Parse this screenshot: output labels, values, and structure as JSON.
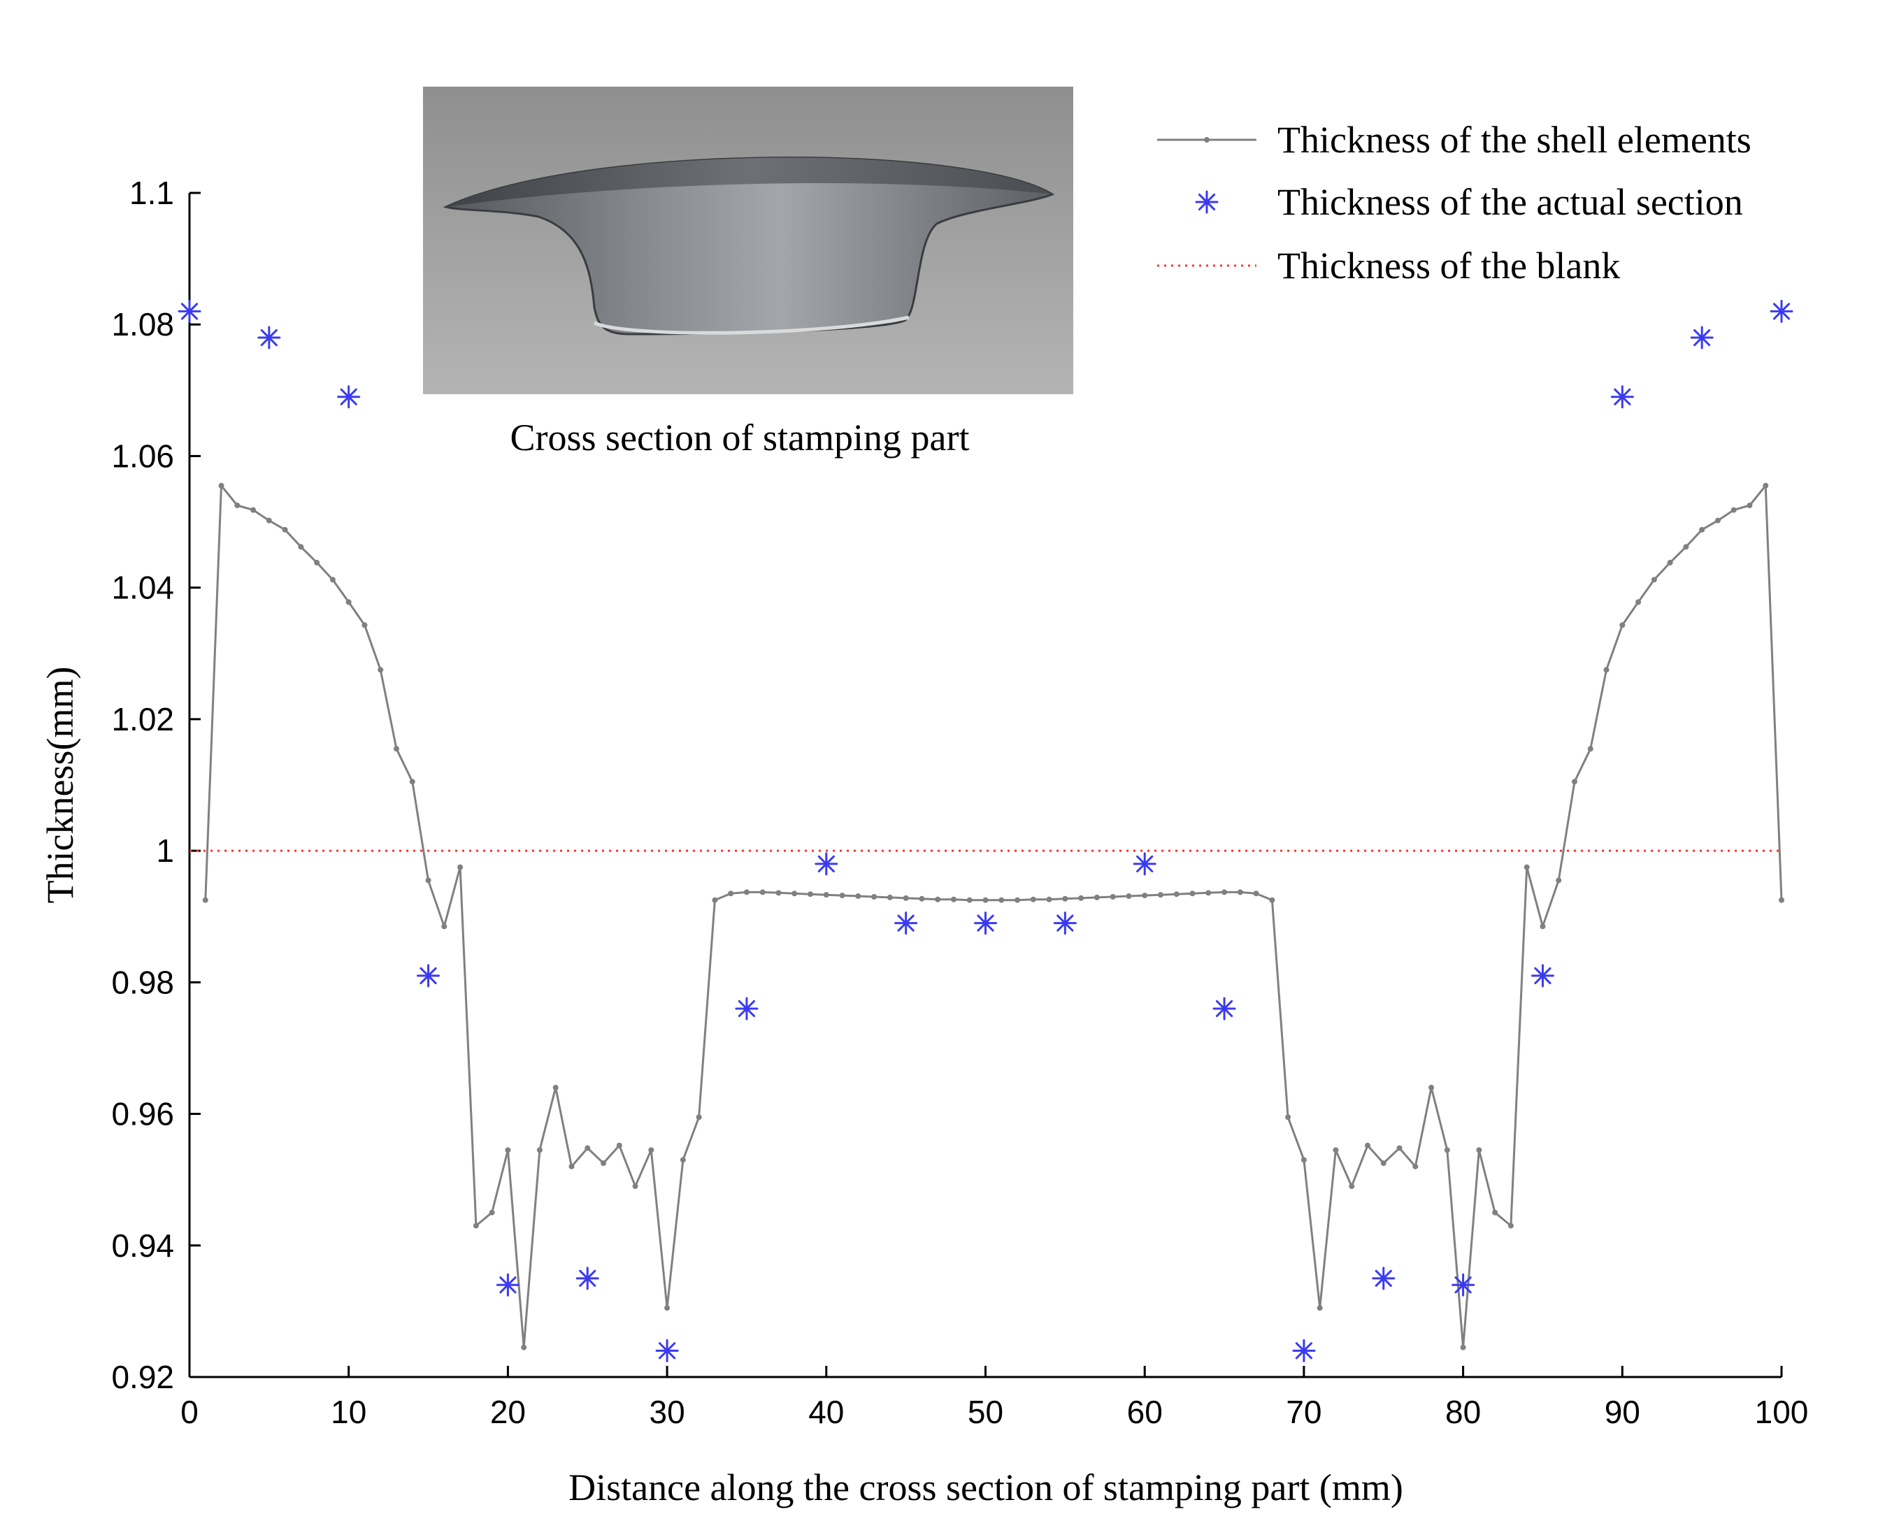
{
  "chart_data": {
    "type": "line",
    "xlabel": "Distance along the cross section of stamping part (mm)",
    "ylabel": "Thickness(mm)",
    "xlim": [
      0,
      100
    ],
    "ylim": [
      0.92,
      1.1
    ],
    "xticks": [
      "0",
      "10",
      "20",
      "30",
      "40",
      "50",
      "60",
      "70",
      "80",
      "90",
      "100"
    ],
    "yticks": [
      "0.92",
      "0.94",
      "0.96",
      "0.98",
      "1",
      "1.02",
      "1.04",
      "1.06",
      "1.08",
      "1.1"
    ],
    "grid": false,
    "legend_position": "top-right",
    "series": [
      {
        "name": "Thickness of the shell elements",
        "style": "line-with-dot-markers",
        "color": "#808080",
        "x": [
          1,
          2,
          3,
          4,
          5,
          6,
          7,
          8,
          9,
          10,
          11,
          12,
          13,
          14,
          15,
          16,
          17,
          18,
          19,
          20,
          21,
          22,
          23,
          24,
          25,
          26,
          27,
          28,
          29,
          30,
          31,
          32,
          33,
          34,
          35,
          36,
          37,
          38,
          39,
          40,
          41,
          42,
          43,
          44,
          45,
          46,
          47,
          48,
          49,
          50,
          51,
          52,
          53,
          54,
          55,
          56,
          57,
          58,
          59,
          60,
          61,
          62,
          63,
          64,
          65,
          66,
          67,
          68,
          69,
          70,
          71,
          72,
          73,
          74,
          75,
          76,
          77,
          78,
          79,
          80,
          81,
          82,
          83,
          84,
          85,
          86,
          87,
          88,
          89,
          90,
          91,
          92,
          93,
          94,
          95,
          96,
          97,
          98,
          99,
          100
        ],
        "y": [
          0.9925,
          1.0555,
          1.0525,
          1.0518,
          1.0502,
          1.0488,
          1.0462,
          1.0438,
          1.0412,
          1.0378,
          1.0343,
          1.0275,
          1.0155,
          1.0105,
          0.9955,
          0.9885,
          0.9975,
          0.943,
          0.945,
          0.9545,
          0.9245,
          0.9545,
          0.964,
          0.952,
          0.9548,
          0.9525,
          0.9552,
          0.949,
          0.9545,
          0.9305,
          0.953,
          0.9595,
          0.9925,
          0.9935,
          0.9937,
          0.9937,
          0.9936,
          0.9935,
          0.9934,
          0.9933,
          0.9932,
          0.9931,
          0.993,
          0.9929,
          0.9928,
          0.9927,
          0.9926,
          0.9926,
          0.9925,
          0.9925,
          0.9925,
          0.9925,
          0.9926,
          0.9926,
          0.9927,
          0.9928,
          0.9929,
          0.993,
          0.9931,
          0.9932,
          0.9933,
          0.9934,
          0.9935,
          0.9936,
          0.9937,
          0.9937,
          0.9935,
          0.9925,
          0.9595,
          0.953,
          0.9305,
          0.9545,
          0.949,
          0.9552,
          0.9525,
          0.9548,
          0.952,
          0.964,
          0.9545,
          0.9245,
          0.9545,
          0.945,
          0.943,
          0.9975,
          0.9885,
          0.9955,
          1.0105,
          1.0155,
          1.0275,
          1.0343,
          1.0378,
          1.0412,
          1.0438,
          1.0462,
          1.0488,
          1.0502,
          1.0518,
          1.0525,
          1.0555,
          0.9925
        ]
      },
      {
        "name": "Thickness of the actual section",
        "style": "asterisk-markers",
        "color": "#3a3af0",
        "x": [
          0,
          5,
          10,
          15,
          20,
          25,
          30,
          35,
          40,
          45,
          50,
          55,
          60,
          65,
          70,
          75,
          80,
          85,
          90,
          95,
          100
        ],
        "y": [
          1.082,
          1.078,
          1.069,
          0.981,
          0.934,
          0.935,
          0.924,
          0.976,
          0.998,
          0.989,
          0.989,
          0.989,
          0.998,
          0.976,
          0.924,
          0.935,
          0.934,
          0.981,
          1.069,
          1.078,
          1.082
        ]
      },
      {
        "name": "Thickness of the blank",
        "style": "dotted-line",
        "color": "#ff3030",
        "x": [
          0,
          100
        ],
        "y": [
          1.0,
          1.0
        ]
      }
    ],
    "inset": {
      "caption": "Cross section of stamping part",
      "content": "photo of a stamped metal cup with flanged rim"
    }
  }
}
